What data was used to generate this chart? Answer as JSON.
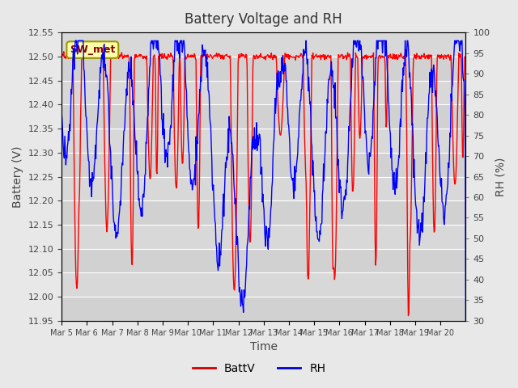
{
  "title": "Battery Voltage and RH",
  "xlabel": "Time",
  "ylabel_left": "Battery (V)",
  "ylabel_right": "RH (%)",
  "ylim_left": [
    11.95,
    12.55
  ],
  "ylim_right": [
    30,
    100
  ],
  "legend_label1": "BattV",
  "legend_label2": "RH",
  "line_color1": "red",
  "line_color2": "blue",
  "legend_color1": "#cc0000",
  "legend_color2": "#0000cc",
  "annotation_text": "SW_met",
  "annotation_bg": "#ffffaa",
  "annotation_border": "#999900",
  "bg_color": "#e8e8e8",
  "plot_bg_color": "#d8d8d8",
  "tick_label_color": "#444444",
  "title_color": "#333333",
  "x_tick_labels": [
    "Mar 5",
    "Mar 6",
    "Mar 7",
    "Mar 8",
    "Mar 9",
    "Mar 10",
    "Mar 11",
    "Mar 12",
    "Mar 13",
    "Mar 14",
    "Mar 15",
    "Mar 16",
    "Mar 17",
    "Mar 18",
    "Mar 19",
    "Mar 20"
  ],
  "n_days": 16,
  "points_per_day": 48,
  "seed": 42
}
